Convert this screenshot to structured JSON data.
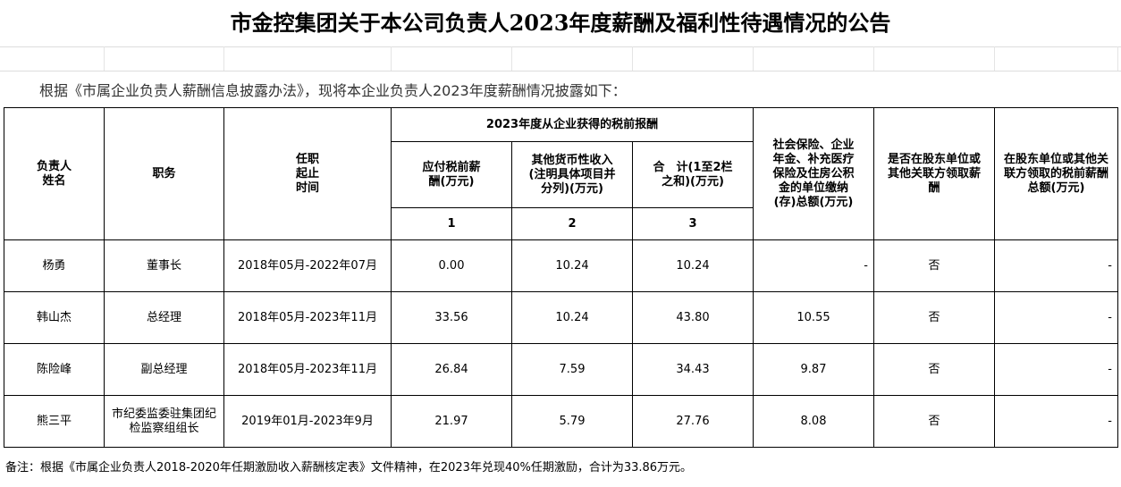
{
  "title": "市金控集团关于本公司负责人2023年度薪酬及福利性待遇情况的公告",
  "intro": "根据《市属企业负责人薪酬信息披露办法》，现将本企业负责人2023年度薪酬情况披露如下：",
  "headers": {
    "name": "负责人姓名",
    "position": "职务",
    "term": "任职起止时间",
    "group": "2023年度从企业获得的税前报酬",
    "pay": "应付税前薪酬(万元)",
    "other": "其他货币性收入(注明具体项目并分列)(万元)",
    "total": "合　计(1至2栏之和)(万元)",
    "col1": "1",
    "col2": "2",
    "col3": "3",
    "social": "社会保险、企业年金、补充医疗保险及住房公积金的单位缴纳(存)总额(万元)",
    "shareholder": "是否在股东单位或其他关联方领取薪酬",
    "shareholder_amount": "在股东单位或其他关联方领取的税前薪酬总额(万元)"
  },
  "rows": [
    {
      "name": "杨勇",
      "position": "董事长",
      "term": "2018年05月-2022年07月",
      "pay": "0.00",
      "other": "10.24",
      "total": "10.24",
      "social": "-",
      "shareholder": "否",
      "amount": "-"
    },
    {
      "name": "韩山杰",
      "position": "总经理",
      "term": "2018年05月-2023年11月",
      "pay": "33.56",
      "other": "10.24",
      "total": "43.80",
      "social": "10.55",
      "shareholder": "否",
      "amount": "-"
    },
    {
      "name": "陈险峰",
      "position": "副总经理",
      "term": "2018年05月-2023年11月",
      "pay": "26.84",
      "other": "7.59",
      "total": "34.43",
      "social": "9.87",
      "shareholder": "否",
      "amount": "-"
    },
    {
      "name": "熊三平",
      "position": "市纪委监委驻集团纪检监察组组长",
      "term": "2019年01月-2023年9月",
      "pay": "21.97",
      "other": "5.79",
      "total": "27.76",
      "social": "8.08",
      "shareholder": "否",
      "amount": "-"
    }
  ],
  "note": "备注：根据《市属企业负责人2018-2020年任期激励收入薪酬核定表》文件精神，在2023年兑现40%任期激励，合计为33.86万元。"
}
